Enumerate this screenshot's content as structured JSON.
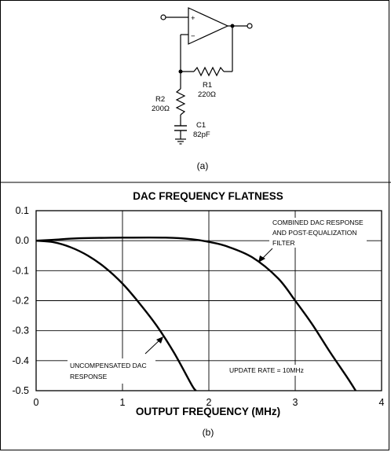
{
  "circuit": {
    "r1_name": "R1",
    "r1_value": "220Ω",
    "r2_name": "R2",
    "r2_value": "200Ω",
    "c1_name": "C1",
    "c1_value": "82pF",
    "plus_sign": "+",
    "minus_sign": "−",
    "caption": "(a)"
  },
  "chart_caption": "(b)",
  "chart_data": {
    "type": "line",
    "title": "DAC FREQUENCY FLATNESS",
    "xlabel": "OUTPUT FREQUENCY (MHz)",
    "ylabel": "",
    "xlim": [
      0,
      4
    ],
    "ylim": [
      -0.5,
      0.1
    ],
    "xticks": [
      "0",
      "1",
      "2",
      "3",
      "4"
    ],
    "yticks": [
      "0.1",
      "0.0",
      "-0.1",
      "-0.2",
      "-0.3",
      "-0.4",
      "-0.5"
    ],
    "grid": true,
    "series": [
      {
        "x": [
          0,
          0.2,
          0.4,
          0.6,
          0.8,
          1.0,
          1.2,
          1.4,
          1.6,
          1.8,
          1.85
        ],
        "values": [
          0.0,
          -0.005,
          -0.022,
          -0.05,
          -0.09,
          -0.143,
          -0.21,
          -0.285,
          -0.375,
          -0.48,
          -0.5
        ]
      },
      {
        "x": [
          0,
          0.2,
          0.5,
          1.0,
          1.5,
          1.8,
          2.0,
          2.2,
          2.5,
          2.8,
          3.0,
          3.2,
          3.4,
          3.6,
          3.7
        ],
        "values": [
          0.0,
          0.003,
          0.008,
          0.01,
          0.01,
          0.005,
          -0.004,
          -0.018,
          -0.055,
          -0.125,
          -0.2,
          -0.28,
          -0.37,
          -0.455,
          -0.5
        ]
      }
    ],
    "annotations": {
      "combined_1": "COMBINED DAC RESPONSE",
      "combined_2": "AND POST-EQUALIZATION",
      "combined_3": "FILTER",
      "uncomp_1": "UNCOMPENSATED DAC",
      "uncomp_2": "RESPONSE",
      "update": "UPDATE RATE = 10MHz"
    }
  }
}
